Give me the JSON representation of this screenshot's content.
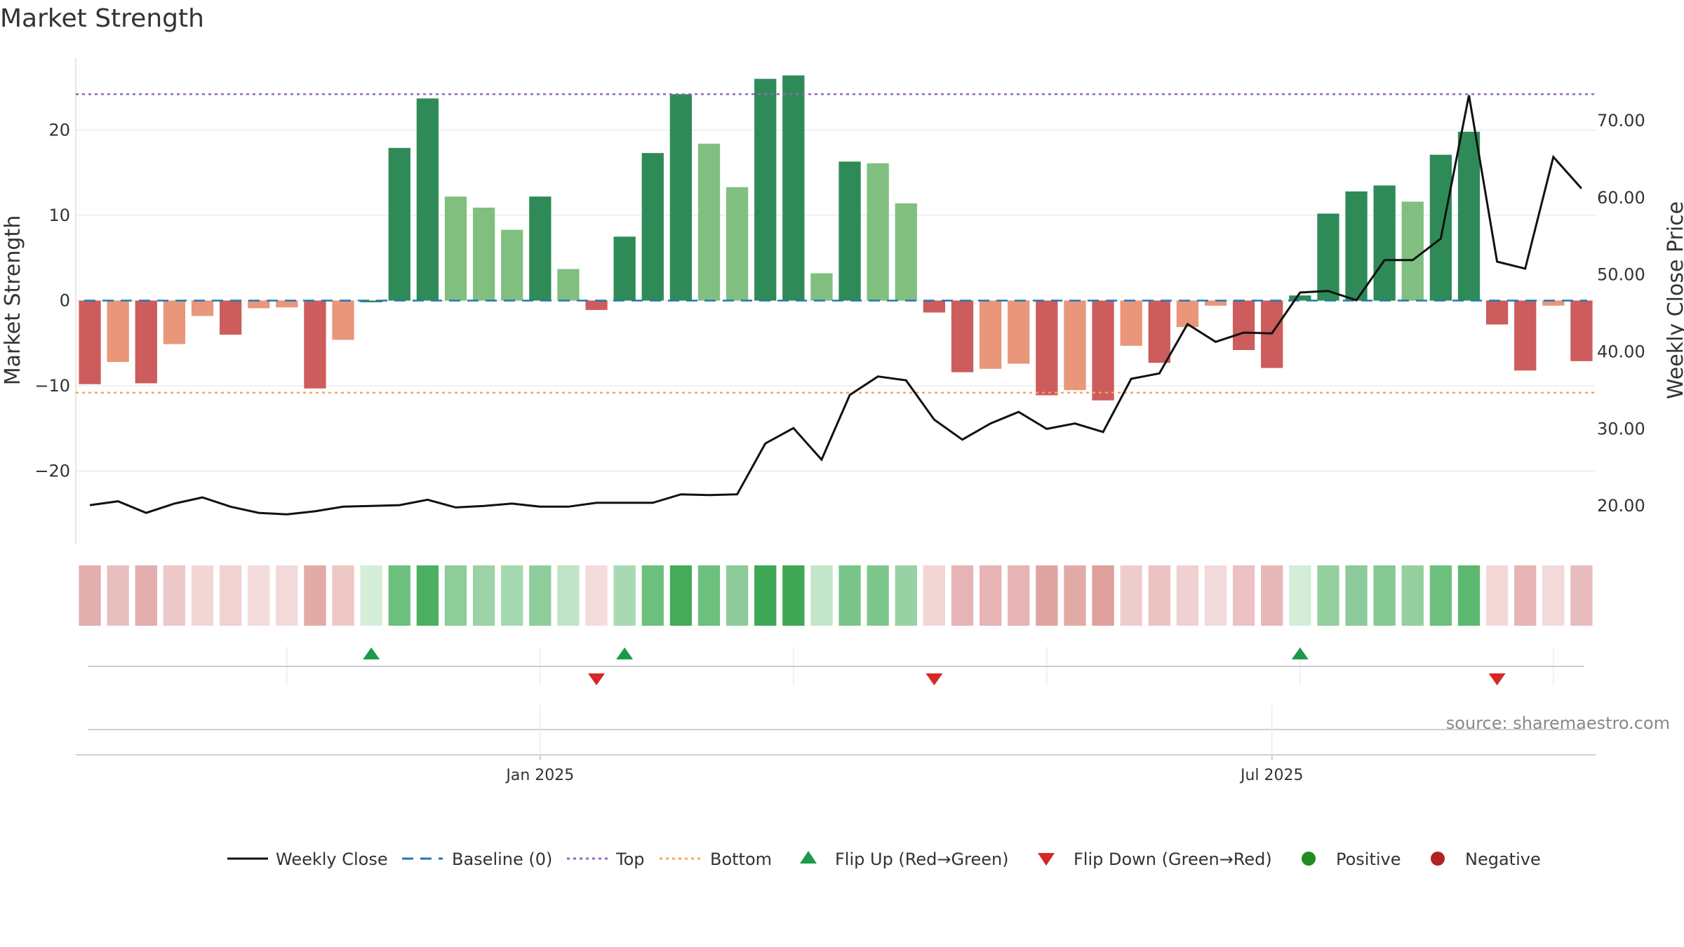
{
  "chart_data": {
    "type": "bar",
    "title": "Market Strength",
    "ylabel_left": "Market Strength",
    "ylabel_right": "Weekly Close Price",
    "ylim_left": [
      -28.5,
      28.5
    ],
    "ylim_right": [
      15.1,
      78.2
    ],
    "yticks_left": [
      20,
      10,
      0,
      -10,
      -20
    ],
    "yticks_left_labels": [
      "20",
      "10",
      "0",
      "−10",
      "−20"
    ],
    "yticks_right": [
      70,
      60,
      50,
      40,
      30,
      20
    ],
    "yticks_right_labels": [
      "70.00",
      "60.00",
      "50.00",
      "40.00",
      "30.00",
      "20.00"
    ],
    "top_level": 24.2,
    "bottom_level": -10.8,
    "baseline": 0,
    "x_tick_labels": [
      "Jan 2025",
      "Jul 2025"
    ],
    "x_tick_positions": [
      16.5,
      42.5
    ],
    "strength": [
      -9.8,
      -7.2,
      -9.7,
      -5.1,
      -1.8,
      -4.0,
      -0.9,
      -0.8,
      -10.3,
      -4.6,
      -0.2,
      17.9,
      23.7,
      12.2,
      10.9,
      8.3,
      12.2,
      3.7,
      -1.1,
      7.5,
      17.3,
      24.2,
      18.4,
      13.3,
      26.0,
      26.4,
      3.2,
      16.3,
      16.1,
      11.4,
      -1.4,
      -8.4,
      -8.0,
      -7.4,
      -11.1,
      -10.5,
      -11.7,
      -5.3,
      -7.3,
      -3.1,
      -0.6,
      -5.8,
      -7.9,
      0.6,
      10.2,
      12.8,
      13.5,
      11.6,
      17.1,
      19.8,
      -2.8,
      -8.2,
      -0.6,
      -7.1
    ],
    "strength_colors": [
      "#cd5c5c",
      "#e9967a",
      "#cd5c5c",
      "#e9967a",
      "#e9967a",
      "#cd5c5c",
      "#e9967a",
      "#e9967a",
      "#cd5c5c",
      "#e9967a",
      "#2e8b57",
      "#2e8b57",
      "#2e8b57",
      "#80bf80",
      "#80bf80",
      "#80bf80",
      "#2e8b57",
      "#80bf80",
      "#cd5c5c",
      "#2e8b57",
      "#2e8b57",
      "#2e8b57",
      "#80bf80",
      "#80bf80",
      "#2e8b57",
      "#2e8b57",
      "#80bf80",
      "#2e8b57",
      "#80bf80",
      "#80bf80",
      "#cd5c5c",
      "#cd5c5c",
      "#e9967a",
      "#e9967a",
      "#cd5c5c",
      "#e9967a",
      "#cd5c5c",
      "#e9967a",
      "#cd5c5c",
      "#e9967a",
      "#e9967a",
      "#cd5c5c",
      "#cd5c5c",
      "#2e8b57",
      "#2e8b57",
      "#2e8b57",
      "#2e8b57",
      "#80bf80",
      "#2e8b57",
      "#2e8b57",
      "#cd5c5c",
      "#cd5c5c",
      "#e9967a",
      "#cd5c5c"
    ],
    "weekly_close": [
      20.1,
      20.6,
      19.1,
      20.3,
      21.1,
      19.9,
      19.1,
      18.9,
      19.3,
      19.9,
      20.0,
      20.1,
      20.8,
      19.8,
      20.0,
      20.3,
      19.9,
      19.9,
      20.4,
      20.4,
      20.4,
      21.5,
      21.4,
      21.5,
      28.1,
      30.1,
      26.0,
      34.4,
      36.8,
      36.3,
      31.2,
      28.6,
      30.7,
      32.2,
      30.0,
      30.7,
      29.6,
      36.5,
      37.2,
      43.6,
      41.3,
      42.5,
      42.4,
      47.7,
      47.9,
      46.7,
      51.9,
      51.9,
      54.7,
      73.3,
      51.7,
      50.8,
      65.3,
      61.2
    ],
    "heat_strip_colors": [
      "#e2aeae",
      "#e8bfbf",
      "#e2aeae",
      "#ecc7c7",
      "#f2d6d6",
      "#f0d2d2",
      "#f4dcdc",
      "#f2dada",
      "#e2aaa4",
      "#eec8c4",
      "#d5eed8",
      "#6cbf7c",
      "#4caf62",
      "#8ecc9a",
      "#9bd2a6",
      "#a6d8b0",
      "#90cd9c",
      "#c0e4c7",
      "#f4dcdc",
      "#a9d9b2",
      "#6cbf7c",
      "#45ab5b",
      "#6cbf7c",
      "#8ccb99",
      "#3ea857",
      "#3ea857",
      "#c3e5ca",
      "#79c488",
      "#7dc68c",
      "#98d1a3",
      "#f2d6d6",
      "#e6b4b4",
      "#e6b4b4",
      "#e6b4b4",
      "#e0a4a0",
      "#e2aaa4",
      "#dea09c",
      "#efcccc",
      "#ecc3c3",
      "#f0d0d0",
      "#f2dada",
      "#ebc1c1",
      "#e6b8b8",
      "#d3edd7",
      "#94cfa0",
      "#8ccb99",
      "#85c893",
      "#94cfa0",
      "#6dbf7d",
      "#5cb870",
      "#f4d8d8",
      "#e6b4b4",
      "#f2dada",
      "#e8bcbc"
    ],
    "flip_up_weeks": [
      10,
      19,
      43
    ],
    "flip_down_weeks": [
      18,
      30,
      50
    ],
    "flip_gridline_weeks": [
      7.5,
      16.5,
      25.5,
      34.5,
      43.5,
      52.5
    ],
    "legend": [
      "Weekly Close",
      "Baseline (0)",
      "Top",
      "Bottom",
      "Flip Up (Red→Green)",
      "Flip Down (Green→Red)",
      "Positive",
      "Negative"
    ],
    "legend_colors": {
      "weekly_close": "#111111",
      "baseline": "#1f77b4",
      "top": "#9467bd",
      "bottom": "#f4a460",
      "flip_up": "#1a9a4a",
      "flip_down": "#d62728",
      "positive": "#228b22",
      "negative": "#b22222"
    }
  },
  "source_text": "source: sharemaestro.com"
}
